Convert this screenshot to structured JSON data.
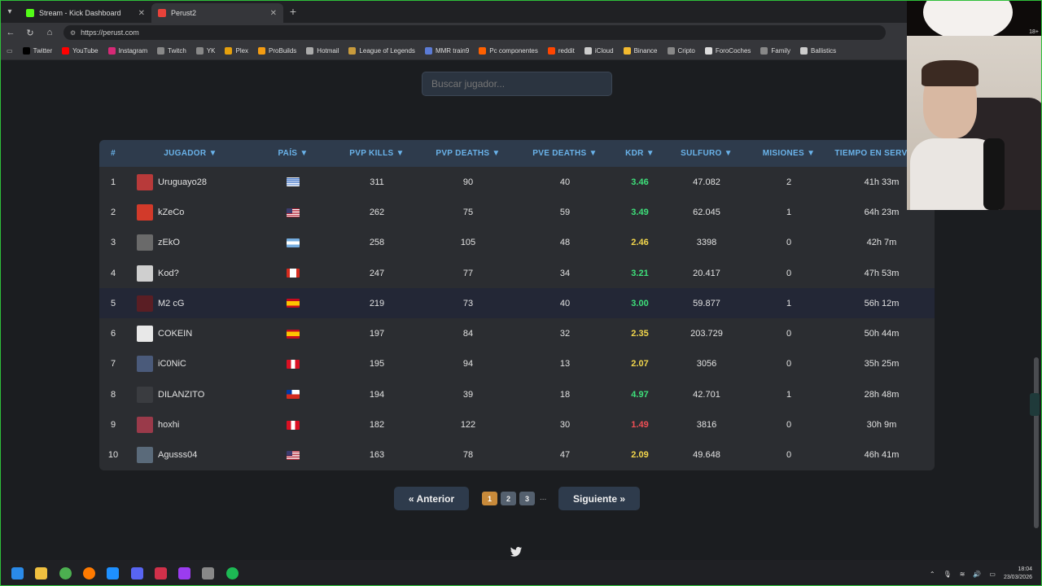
{
  "browser": {
    "tabs": [
      {
        "title": "Stream - Kick Dashboard",
        "favicon_color": "#53fc18",
        "active": false
      },
      {
        "title": "Perust2",
        "favicon_color": "#e8423a",
        "active": true
      }
    ],
    "url": "https://perust.com",
    "bookmarks": [
      {
        "label": "Twitter",
        "icon": "x-icon",
        "color": "#000000"
      },
      {
        "label": "YouTube",
        "icon": "youtube-icon",
        "color": "#ff0000"
      },
      {
        "label": "Instagram",
        "icon": "instagram-icon",
        "color": "#d62976"
      },
      {
        "label": "Twitch",
        "icon": "folder-icon",
        "color": "#888888"
      },
      {
        "label": "YK",
        "icon": "folder-icon",
        "color": "#888888"
      },
      {
        "label": "Plex",
        "icon": "plex-icon",
        "color": "#e5a00d"
      },
      {
        "label": "ProBuilds",
        "icon": "probuilds-icon",
        "color": "#f39c12"
      },
      {
        "label": "Hotmail",
        "icon": "globe-icon",
        "color": "#aaaaaa"
      },
      {
        "label": "League of Legends",
        "icon": "lol-icon",
        "color": "#c89b3c"
      },
      {
        "label": "MMR train9",
        "icon": "mmr-icon",
        "color": "#5b7bd5"
      },
      {
        "label": "Pc componentes",
        "icon": "pccomp-icon",
        "color": "#ff6000"
      },
      {
        "label": "reddit",
        "icon": "reddit-icon",
        "color": "#ff4500"
      },
      {
        "label": "iCloud",
        "icon": "cloud-icon",
        "color": "#cccccc"
      },
      {
        "label": "Binance",
        "icon": "binance-icon",
        "color": "#f3ba2f"
      },
      {
        "label": "Cripto",
        "icon": "folder-icon",
        "color": "#888888"
      },
      {
        "label": "ForoCoches",
        "icon": "forocoches-icon",
        "color": "#dddddd"
      },
      {
        "label": "Family",
        "icon": "folder-icon",
        "color": "#888888"
      },
      {
        "label": "Ballistics",
        "icon": "ballistics-icon",
        "color": "#cccccc"
      }
    ]
  },
  "search": {
    "placeholder": "Buscar jugador..."
  },
  "table": {
    "headers": [
      "#",
      "JUGADOR ▼",
      "PAÍS ▼",
      "PVP KILLS ▼",
      "PVP DEATHS ▼",
      "PVE DEATHS ▼",
      "KDR ▼",
      "SULFURO ▼",
      "MISIONES ▼",
      "TIEMPO EN SERVIDOR"
    ],
    "rows": [
      {
        "rank": "1",
        "player": "Uruguayo28",
        "avatar_color": "#b83a3a",
        "flag": "uruguay",
        "pvp_kills": "311",
        "pvp_deaths": "90",
        "pve_deaths": "40",
        "kdr": "3.46",
        "kdr_tone": "green",
        "sulfur": "47.082",
        "missions": "2",
        "time": "41h 33m"
      },
      {
        "rank": "2",
        "player": "kZeCo",
        "avatar_color": "#d23a2a",
        "flag": "usa",
        "pvp_kills": "262",
        "pvp_deaths": "75",
        "pve_deaths": "59",
        "kdr": "3.49",
        "kdr_tone": "green",
        "sulfur": "62.045",
        "missions": "1",
        "time": "64h 23m"
      },
      {
        "rank": "3",
        "player": "zEkO",
        "avatar_color": "#6a6a6a",
        "flag": "argentina",
        "pvp_kills": "258",
        "pvp_deaths": "105",
        "pve_deaths": "48",
        "kdr": "2.46",
        "kdr_tone": "yellow",
        "sulfur": "3398",
        "missions": "0",
        "time": "42h 7m"
      },
      {
        "rank": "4",
        "player": "Kod?",
        "avatar_color": "#cfcfcf",
        "flag": "canada",
        "pvp_kills": "247",
        "pvp_deaths": "77",
        "pve_deaths": "34",
        "kdr": "3.21",
        "kdr_tone": "green",
        "sulfur": "20.417",
        "missions": "0",
        "time": "47h 53m"
      },
      {
        "rank": "5",
        "player": "M2 cG",
        "avatar_color": "#5a1e24",
        "flag": "spain",
        "pvp_kills": "219",
        "pvp_deaths": "73",
        "pve_deaths": "40",
        "kdr": "3.00",
        "kdr_tone": "green",
        "sulfur": "59.877",
        "missions": "1",
        "time": "56h 12m"
      },
      {
        "rank": "6",
        "player": "COKEIN",
        "avatar_color": "#e8e8e8",
        "flag": "spain",
        "pvp_kills": "197",
        "pvp_deaths": "84",
        "pve_deaths": "32",
        "kdr": "2.35",
        "kdr_tone": "yellow",
        "sulfur": "203.729",
        "missions": "0",
        "time": "50h 44m"
      },
      {
        "rank": "7",
        "player": "iC0NiC",
        "avatar_color": "#4a5a7a",
        "flag": "peru",
        "pvp_kills": "195",
        "pvp_deaths": "94",
        "pve_deaths": "13",
        "kdr": "2.07",
        "kdr_tone": "yellow",
        "sulfur": "3056",
        "missions": "0",
        "time": "35h 25m"
      },
      {
        "rank": "8",
        "player": "DILANZITO",
        "avatar_color": "#3a3c40",
        "flag": "chile",
        "pvp_kills": "194",
        "pvp_deaths": "39",
        "pve_deaths": "18",
        "kdr": "4.97",
        "kdr_tone": "green",
        "sulfur": "42.701",
        "missions": "1",
        "time": "28h 48m"
      },
      {
        "rank": "9",
        "player": "hoxhi",
        "avatar_color": "#9a3a4a",
        "flag": "peru",
        "pvp_kills": "182",
        "pvp_deaths": "122",
        "pve_deaths": "30",
        "kdr": "1.49",
        "kdr_tone": "red",
        "sulfur": "3816",
        "missions": "0",
        "time": "30h 9m"
      },
      {
        "rank": "10",
        "player": "Agusss04",
        "avatar_color": "#5a6a7a",
        "flag": "usa",
        "pvp_kills": "163",
        "pvp_deaths": "78",
        "pve_deaths": "47",
        "kdr": "2.09",
        "kdr_tone": "yellow",
        "sulfur": "49.648",
        "missions": "0",
        "time": "46h 41m"
      }
    ]
  },
  "pagination": {
    "prev_label": "« Anterior",
    "next_label": "Siguiente »",
    "pages": [
      "1",
      "2",
      "3"
    ],
    "current_page": "1",
    "ellipsis": "..."
  },
  "webcam": {
    "badge": "18+"
  },
  "taskbar": {
    "time": "18:04",
    "date": "23/03/2026",
    "apps": [
      "windows-icon",
      "file-explorer-icon",
      "chrome-icon",
      "firefox-icon",
      "edge-icon",
      "discord-icon",
      "app-a-icon",
      "next-icon",
      "steam-icon",
      "spotify-icon"
    ]
  },
  "colors": {
    "accent": "#6ab3ea",
    "header_bg": "#2e3b4c",
    "kdr_green": "#3ee07a",
    "kdr_yellow": "#f2d64c",
    "kdr_red": "#ef4f55",
    "page_active": "#c88a3a"
  }
}
